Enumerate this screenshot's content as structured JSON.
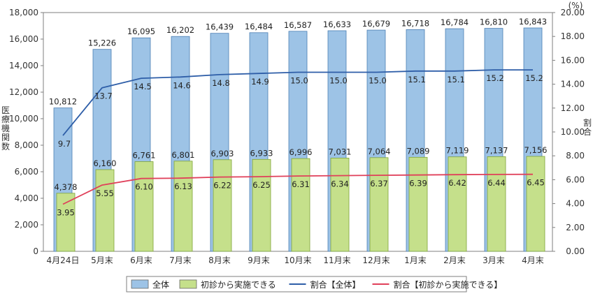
{
  "chart_data": {
    "type": "bar",
    "categories": [
      "4月24日",
      "5月末",
      "6月末",
      "7月末",
      "8月末",
      "9月末",
      "10月末",
      "11月末",
      "12月末",
      "1月末",
      "2月末",
      "3月末",
      "4月末"
    ],
    "series": [
      {
        "name": "全体",
        "kind": "bar",
        "axis": "left",
        "color": "#9dc3e6",
        "values": [
          10812,
          15226,
          16095,
          16202,
          16439,
          16484,
          16587,
          16633,
          16679,
          16718,
          16784,
          16810,
          16843
        ],
        "labels": [
          "10,812",
          "15,226",
          "16,095",
          "16,202",
          "16,439",
          "16,484",
          "16,587",
          "16,633",
          "16,679",
          "16,718",
          "16,784",
          "16,810",
          "16,843"
        ]
      },
      {
        "name": "初診から実施できる",
        "kind": "bar",
        "axis": "left",
        "color": "#c5e08b",
        "values": [
          4378,
          6160,
          6761,
          6801,
          6903,
          6933,
          6996,
          7031,
          7064,
          7089,
          7119,
          7137,
          7156
        ],
        "labels": [
          "4,378",
          "6,160",
          "6,761",
          "6,801",
          "6,903",
          "6,933",
          "6,996",
          "7,031",
          "7,064",
          "7,089",
          "7,119",
          "7,137",
          "7,156"
        ]
      },
      {
        "name": "割合【全体】",
        "kind": "line",
        "axis": "right",
        "color": "#2e5ea8",
        "values": [
          9.7,
          13.7,
          14.5,
          14.6,
          14.8,
          14.9,
          15.0,
          15.0,
          15.0,
          15.1,
          15.1,
          15.2,
          15.2
        ],
        "labels": [
          "9.7",
          "13.7",
          "14.5",
          "14.6",
          "14.8",
          "14.9",
          "15.0",
          "15.0",
          "15.0",
          "15.1",
          "15.1",
          "15.2",
          "15.2"
        ]
      },
      {
        "name": "割合【初診から実施できる】",
        "kind": "line",
        "axis": "right",
        "color": "#e0405a",
        "values": [
          3.95,
          5.55,
          6.1,
          6.13,
          6.22,
          6.25,
          6.31,
          6.34,
          6.37,
          6.39,
          6.42,
          6.44,
          6.45
        ],
        "labels": [
          "3.95",
          "5.55",
          "6.10",
          "6.13",
          "6.22",
          "6.25",
          "6.31",
          "6.34",
          "6.37",
          "6.39",
          "6.42",
          "6.44",
          "6.45"
        ]
      }
    ],
    "ylabel": "医療機関数",
    "y2label": "割合",
    "y2unit": "(%)",
    "ylim": [
      0,
      18000
    ],
    "y2lim": [
      0,
      20
    ],
    "yticks": [
      "0",
      "2,000",
      "4,000",
      "6,000",
      "8,000",
      "10,000",
      "12,000",
      "14,000",
      "16,000",
      "18,000"
    ],
    "y2ticks": [
      "0.00",
      "2.00",
      "4.00",
      "6.00",
      "8.00",
      "10.00",
      "12.00",
      "14.00",
      "16.00",
      "18.00",
      "20.00"
    ],
    "grid": false,
    "legend_position": "bottom"
  }
}
